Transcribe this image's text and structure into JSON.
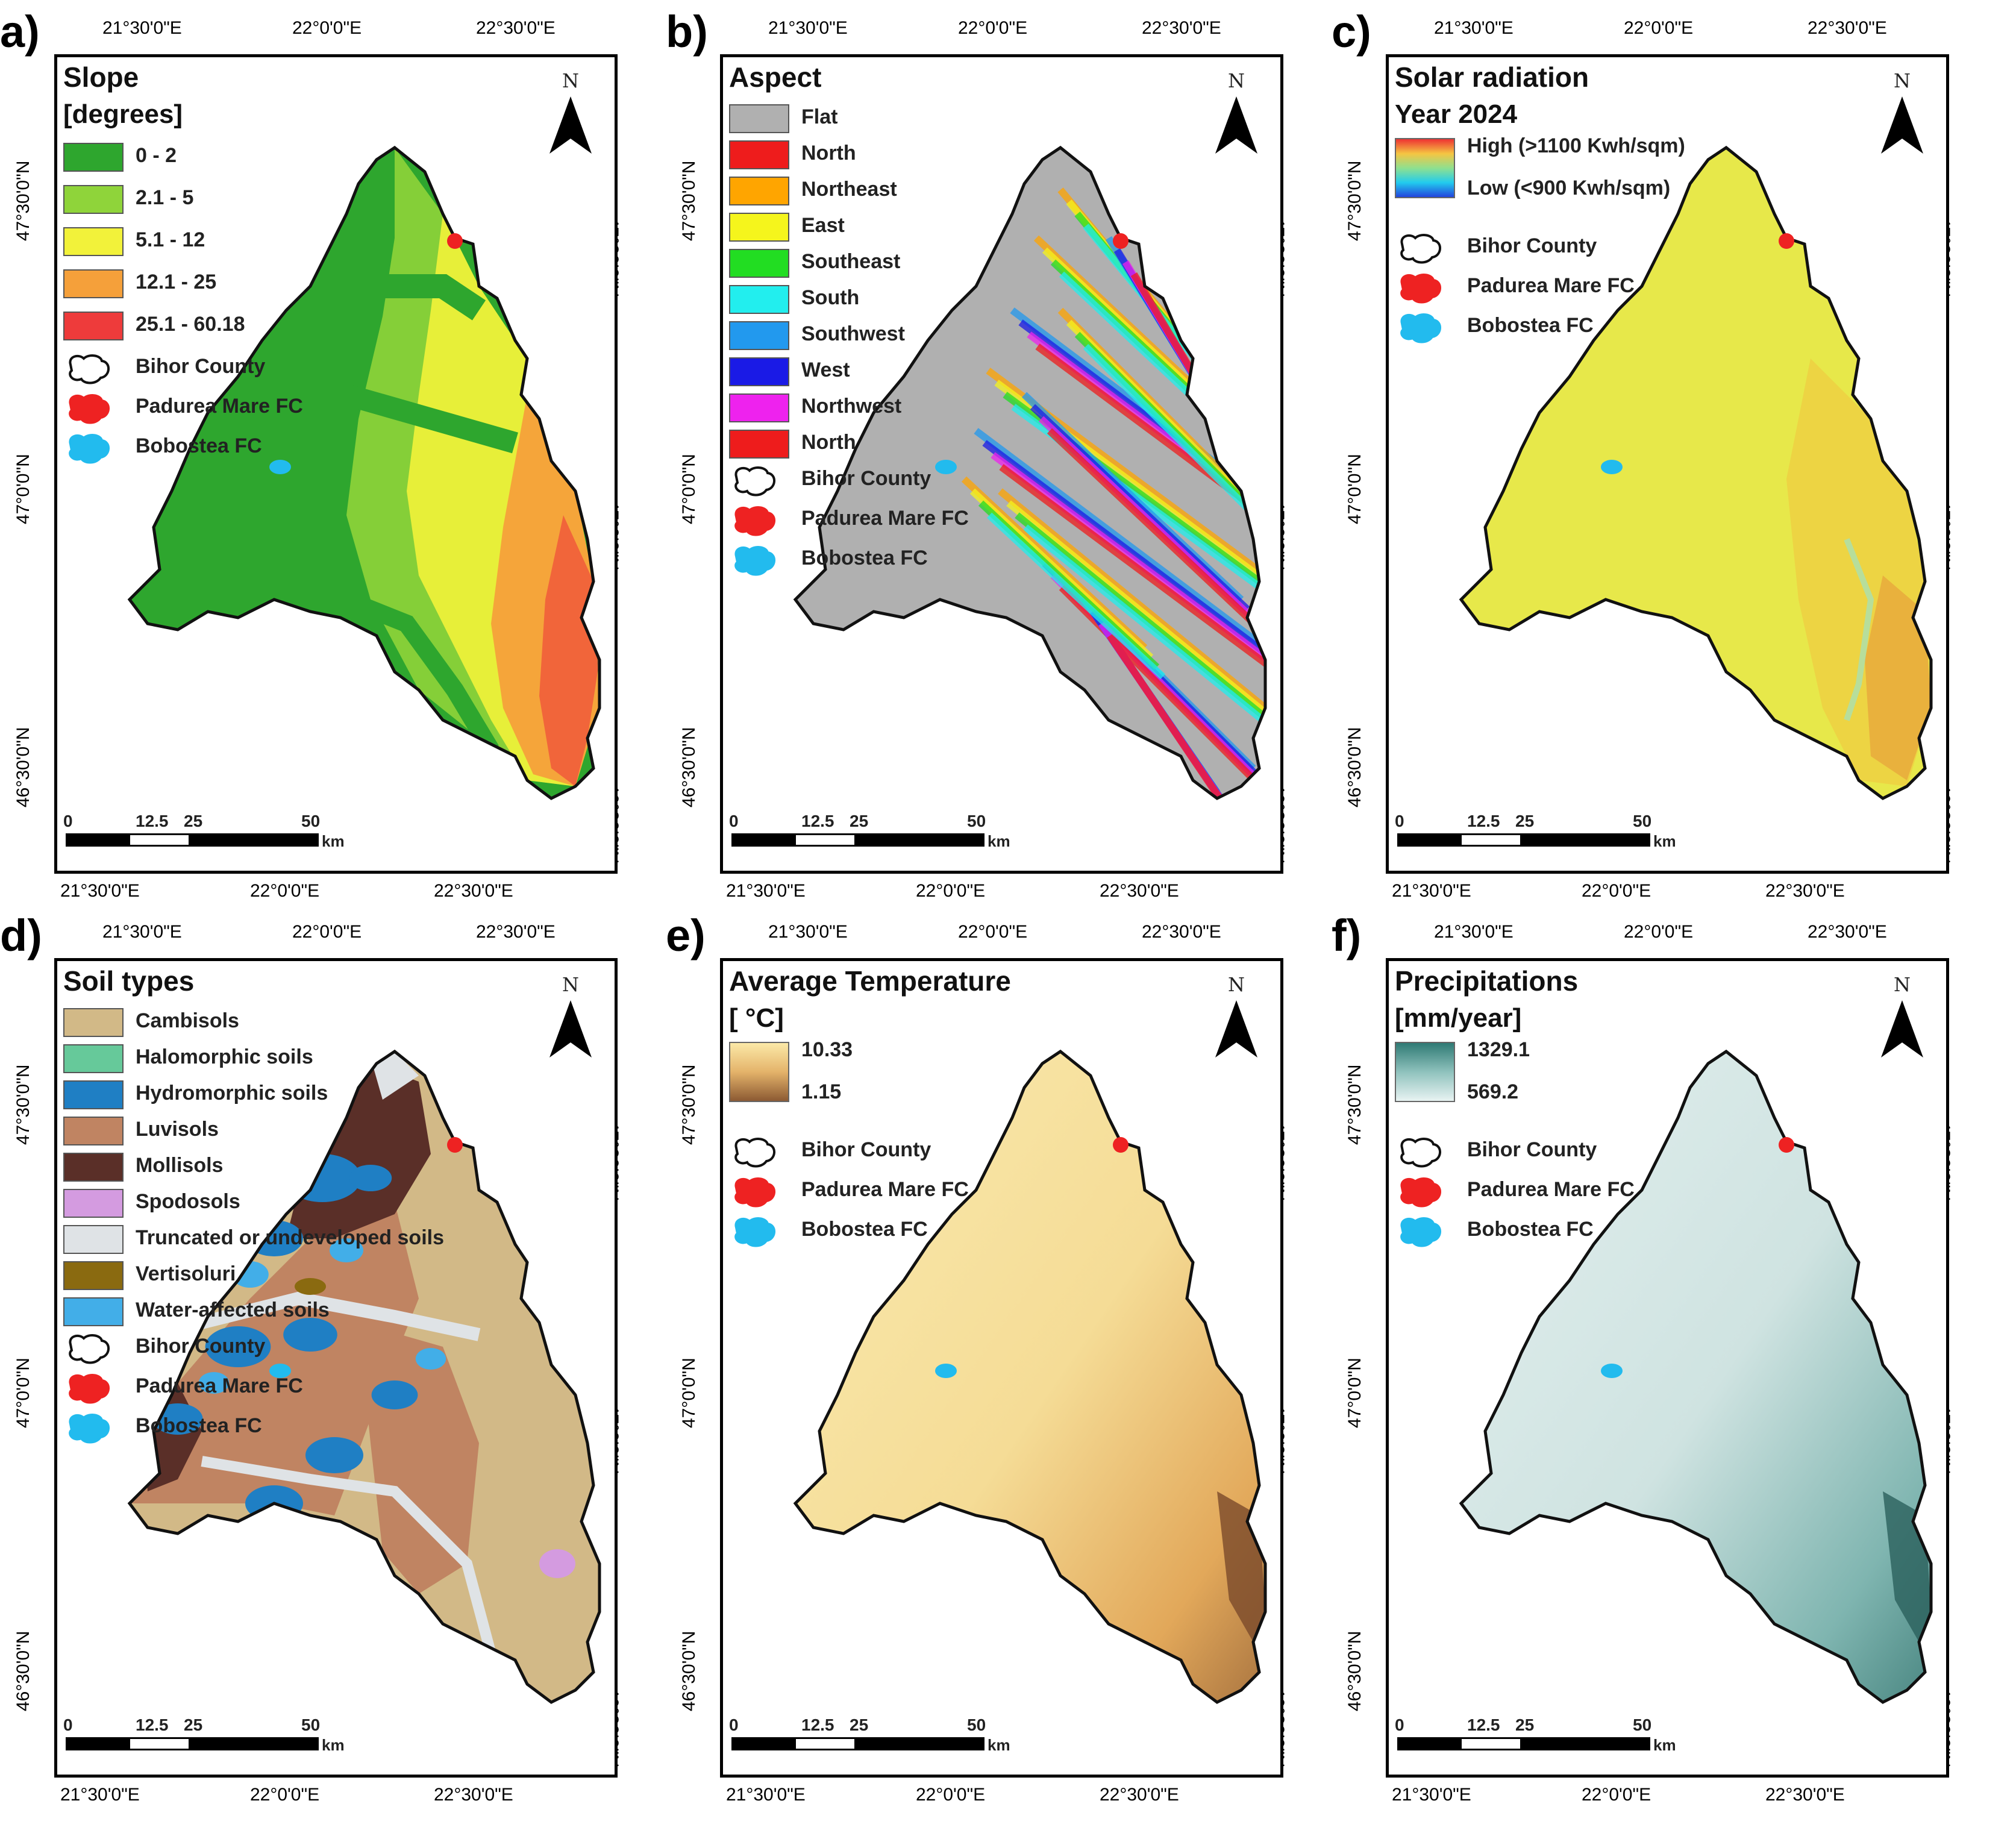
{
  "lon_ticks": [
    "21°30'0\"E",
    "22°0'0\"E",
    "22°30'0\"E"
  ],
  "lat_ticks": [
    "47°30'0\"N",
    "47°0'0\"N",
    "46°30'0\"N"
  ],
  "north_label": "N",
  "scale": {
    "labels": [
      "0",
      "12.5",
      "25",
      "50"
    ],
    "unit": "km"
  },
  "common_legend": {
    "county": "Bihor County",
    "padurea": "Padurea Mare FC",
    "bobostea": "Bobostea FC"
  },
  "colors": {
    "county_outline": "#111111",
    "padurea": "#ee2222",
    "bobostea": "#22bbee"
  },
  "panels": [
    {
      "letter": "a)",
      "title": "Slope",
      "subtitle": "[degrees]",
      "map_style": "slope",
      "classes": [
        {
          "label": "0 - 2",
          "color": "#2ea62e"
        },
        {
          "label": "2.1 - 5",
          "color": "#8fd43a"
        },
        {
          "label": "5.1 - 12",
          "color": "#f2f23a"
        },
        {
          "label": "12.1 - 25",
          "color": "#f5a03a"
        },
        {
          "label": "25.1 - 60.18",
          "color": "#ee3b3b"
        }
      ]
    },
    {
      "letter": "b)",
      "title": "Aspect",
      "map_style": "aspect",
      "classes": [
        {
          "label": "Flat",
          "color": "#b0b0b0"
        },
        {
          "label": "North",
          "color": "#ee1c1c"
        },
        {
          "label": "Northeast",
          "color": "#ffa500"
        },
        {
          "label": "East",
          "color": "#f5f51c"
        },
        {
          "label": "Southeast",
          "color": "#22dd22"
        },
        {
          "label": "South",
          "color": "#22eeee"
        },
        {
          "label": "Southwest",
          "color": "#2299ee"
        },
        {
          "label": "West",
          "color": "#1a1ae6"
        },
        {
          "label": "Northwest",
          "color": "#ee22ee"
        },
        {
          "label": "North",
          "color": "#ee1c1c"
        }
      ]
    },
    {
      "letter": "c)",
      "title": "Solar radiation",
      "subtitle": "Year 2024",
      "map_style": "solar",
      "gradient": {
        "high": "High (>1100 Kwh/sqm)",
        "low": "Low (<900 Kwh/sqm)",
        "colors": [
          "#ee3333",
          "#f5c542",
          "#8fe08f",
          "#22ccee",
          "#2244dd"
        ]
      }
    },
    {
      "letter": "d)",
      "title": "Soil types",
      "map_style": "soil",
      "classes": [
        {
          "label": "Cambisols",
          "color": "#d2b987"
        },
        {
          "label": "Halomorphic soils",
          "color": "#66c99a"
        },
        {
          "label": "Hydromorphic soils",
          "color": "#1f7fc4"
        },
        {
          "label": "Luvisols",
          "color": "#c08462"
        },
        {
          "label": "Mollisols",
          "color": "#5a2f28"
        },
        {
          "label": "Spodosols",
          "color": "#d49be0"
        },
        {
          "label": "Truncated or undeveloped soils",
          "color": "#dfe3e6"
        },
        {
          "label": "Vertisoluri",
          "color": "#8a6a10"
        },
        {
          "label": "Water-affected soils",
          "color": "#42aee8"
        }
      ]
    },
    {
      "letter": "e)",
      "title": "Average Temperature",
      "subtitle": "[ °C]",
      "map_style": "temp",
      "gradient": {
        "high": "10.33",
        "low": "1.15",
        "colors": [
          "#fbe9a8",
          "#e4b36a",
          "#8c5a33"
        ]
      }
    },
    {
      "letter": "f)",
      "title": "Precipitations",
      "subtitle": "[mm/year]",
      "map_style": "precip",
      "gradient": {
        "high": "1329.1",
        "low": "569.2",
        "colors": [
          "#2f7a74",
          "#8fc2bd",
          "#e8f3f2"
        ]
      }
    }
  ]
}
